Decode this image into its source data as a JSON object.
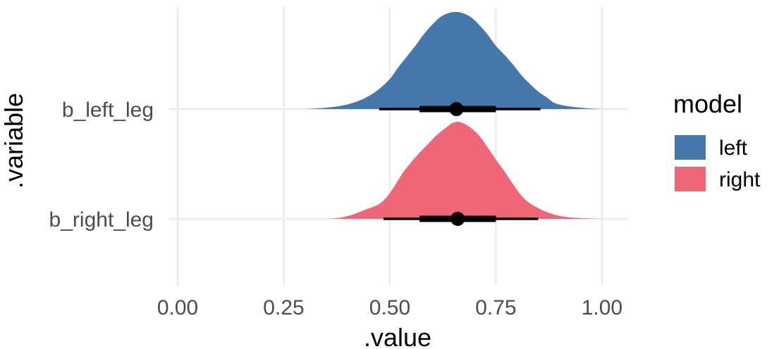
{
  "chart_data": {
    "type": "area",
    "xlabel": ".value",
    "ylabel": ".variable",
    "xlim": [
      -0.02,
      1.06
    ],
    "x_ticks": [
      0.0,
      0.25,
      0.5,
      0.75,
      1.0
    ],
    "x_tick_labels": [
      "0.00",
      "0.25",
      "0.50",
      "0.75",
      "1.00"
    ],
    "categories": [
      "b_left_leg",
      "b_right_leg"
    ],
    "grid": true,
    "legend": {
      "title": "model",
      "placement": "right"
    },
    "series": [
      {
        "name": "left",
        "category": "b_left_leg",
        "color": "#4477AA",
        "density_x": [
          0.3,
          0.34,
          0.38,
          0.41,
          0.44,
          0.47,
          0.5,
          0.52,
          0.54,
          0.56,
          0.58,
          0.6,
          0.62,
          0.64,
          0.655,
          0.67,
          0.69,
          0.71,
          0.73,
          0.75,
          0.77,
          0.79,
          0.81,
          0.83,
          0.85,
          0.87,
          0.89,
          0.92,
          0.96,
          1.0
        ],
        "density_y": [
          0.0,
          0.01,
          0.03,
          0.06,
          0.11,
          0.19,
          0.31,
          0.43,
          0.54,
          0.65,
          0.77,
          0.87,
          0.95,
          0.99,
          1.0,
          0.99,
          0.95,
          0.87,
          0.77,
          0.65,
          0.56,
          0.46,
          0.35,
          0.26,
          0.18,
          0.12,
          0.06,
          0.03,
          0.01,
          0.0
        ],
        "point": 0.657,
        "interval_66": [
          0.57,
          0.75
        ],
        "interval_95": [
          0.475,
          0.855
        ]
      },
      {
        "name": "right",
        "category": "b_right_leg",
        "color": "#EE6677",
        "density_x": [
          0.35,
          0.38,
          0.41,
          0.44,
          0.47,
          0.49,
          0.51,
          0.53,
          0.55,
          0.57,
          0.59,
          0.61,
          0.63,
          0.645,
          0.66,
          0.675,
          0.69,
          0.71,
          0.73,
          0.75,
          0.77,
          0.79,
          0.81,
          0.83,
          0.85,
          0.87,
          0.9,
          0.94,
          1.0
        ],
        "density_y": [
          0.0,
          0.01,
          0.04,
          0.09,
          0.14,
          0.21,
          0.33,
          0.47,
          0.58,
          0.68,
          0.77,
          0.86,
          0.93,
          0.98,
          1.0,
          0.98,
          0.94,
          0.86,
          0.74,
          0.61,
          0.49,
          0.36,
          0.24,
          0.16,
          0.11,
          0.07,
          0.03,
          0.01,
          0.0
        ],
        "point": 0.66,
        "interval_66": [
          0.57,
          0.75
        ],
        "interval_95": [
          0.485,
          0.85
        ]
      }
    ]
  }
}
